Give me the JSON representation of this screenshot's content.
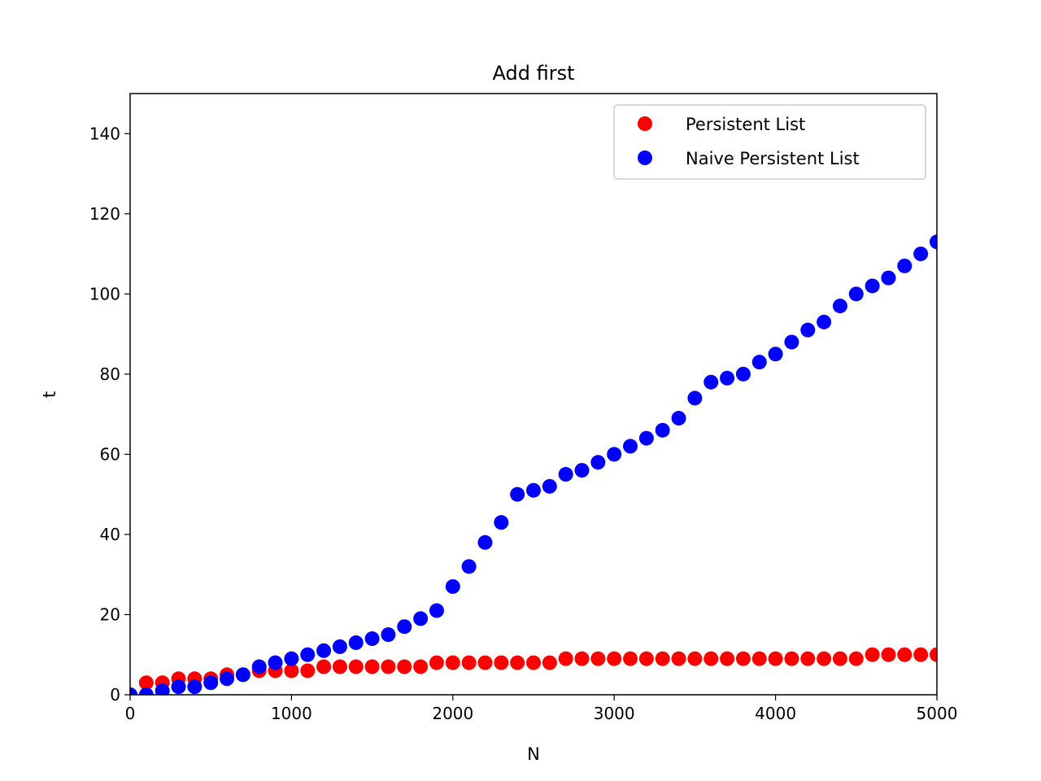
{
  "chart_data": {
    "type": "scatter",
    "title": "Add first",
    "xlabel": "N",
    "ylabel": "t",
    "xlim": [
      0,
      5000
    ],
    "ylim": [
      0,
      150
    ],
    "xticks": [
      0,
      1000,
      2000,
      3000,
      4000,
      5000
    ],
    "yticks": [
      0,
      20,
      40,
      60,
      80,
      100,
      120,
      140
    ],
    "grid": false,
    "legend_position": "upper right",
    "x": [
      0,
      100,
      200,
      300,
      400,
      500,
      600,
      700,
      800,
      900,
      1000,
      1100,
      1200,
      1300,
      1400,
      1500,
      1600,
      1700,
      1800,
      1900,
      2000,
      2100,
      2200,
      2300,
      2400,
      2500,
      2600,
      2700,
      2800,
      2900,
      3000,
      3100,
      3200,
      3300,
      3400,
      3500,
      3600,
      3700,
      3800,
      3900,
      4000,
      4100,
      4200,
      4300,
      4400,
      4500,
      4600,
      4700,
      4800,
      4900,
      5000
    ],
    "series": [
      {
        "name": "Persistent List",
        "color": "#ff0000",
        "values": [
          0,
          3,
          3,
          4,
          4,
          4,
          5,
          5,
          6,
          6,
          6,
          6,
          7,
          7,
          7,
          7,
          7,
          7,
          7,
          8,
          8,
          8,
          8,
          8,
          8,
          8,
          8,
          9,
          9,
          9,
          9,
          9,
          9,
          9,
          9,
          9,
          9,
          9,
          9,
          9,
          9,
          9,
          9,
          9,
          9,
          9,
          10,
          10,
          10,
          10,
          10
        ]
      },
      {
        "name": "Naive Persistent List",
        "color": "#0000ff",
        "values": [
          0,
          0,
          1,
          2,
          2,
          3,
          4,
          5,
          7,
          8,
          9,
          10,
          11,
          12,
          13,
          14,
          15,
          17,
          19,
          21,
          27,
          32,
          38,
          43,
          50,
          51,
          52,
          55,
          56,
          58,
          60,
          62,
          64,
          66,
          69,
          74,
          78,
          79,
          80,
          83,
          85,
          88,
          91,
          93,
          97,
          100,
          102,
          104,
          107,
          110,
          113
        ]
      }
    ]
  }
}
